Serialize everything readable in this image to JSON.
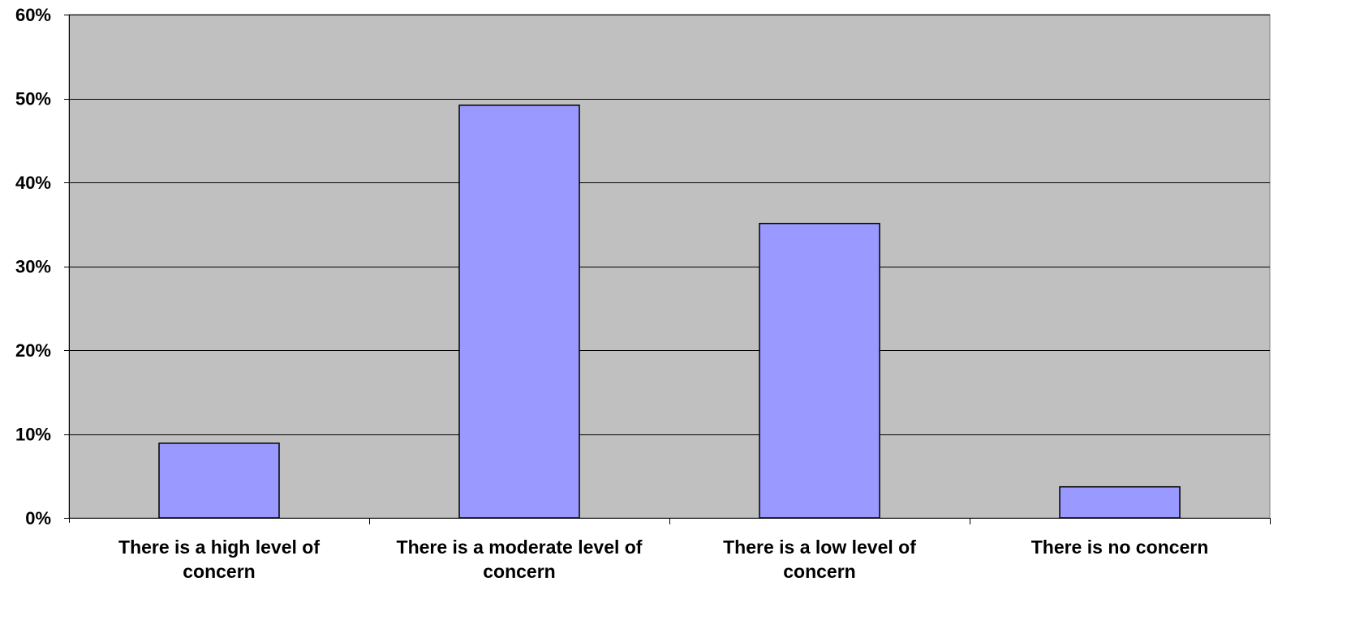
{
  "chart_data": {
    "type": "bar",
    "title": "",
    "xlabel": "",
    "ylabel": "",
    "categories": [
      [
        "There is a high level of",
        "concern"
      ],
      [
        "There is a moderate level of",
        "concern"
      ],
      [
        "There is a low level of",
        "concern"
      ],
      [
        "There is no concern"
      ]
    ],
    "values": [
      8.9,
      49.2,
      35.1,
      3.7
    ],
    "ylim": [
      0,
      60
    ],
    "yticks": [
      0,
      10,
      20,
      30,
      40,
      50,
      60
    ],
    "ytick_labels": [
      "0%",
      "10%",
      "20%",
      "30%",
      "40%",
      "50%",
      "60%"
    ],
    "grid": true,
    "legend": "none",
    "colors": {
      "plot_background": "#c0c0c0",
      "bar_fill": "#9999ff",
      "bar_stroke": "#000000",
      "gridline": "#000000"
    }
  }
}
